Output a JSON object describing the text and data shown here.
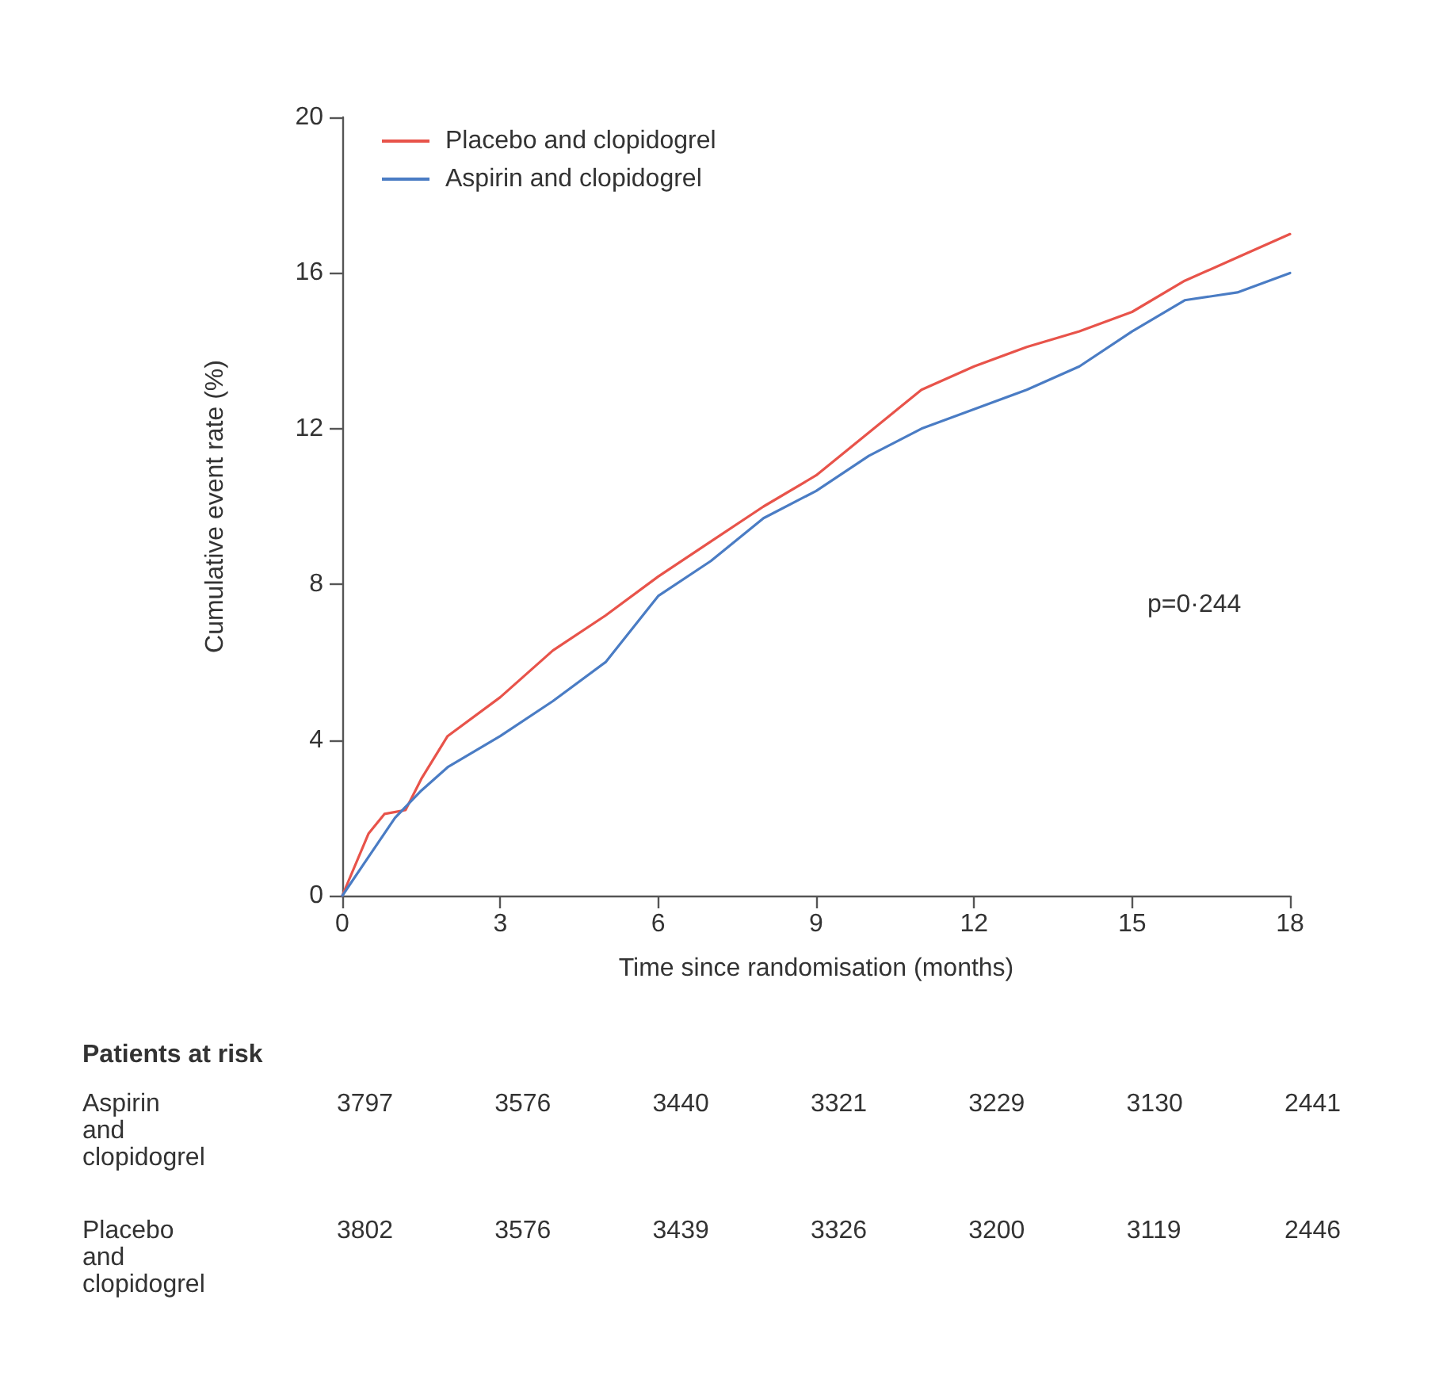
{
  "chart_data": {
    "type": "line",
    "xlabel": "Time since randomisation (months)",
    "ylabel": "Cumulative event rate (%)",
    "x": [
      0,
      0.5,
      0.8,
      1.2,
      1.5,
      2,
      3,
      4,
      5,
      6,
      7,
      8,
      9,
      10,
      11,
      12,
      13,
      14,
      15,
      16,
      17,
      18
    ],
    "series": [
      {
        "name": "Placebo and clopidogrel",
        "color": "#e8534a",
        "values": [
          0,
          1.6,
          2.1,
          2.2,
          3.0,
          4.1,
          5.1,
          6.3,
          7.2,
          8.2,
          9.1,
          10.0,
          10.8,
          11.9,
          13.0,
          13.6,
          14.1,
          14.5,
          15.0,
          15.8,
          16.4,
          17.0
        ]
      },
      {
        "name": "Aspirin and clopidogrel",
        "color": "#4a7cc4",
        "x": [
          0,
          0.5,
          1,
          1.5,
          2,
          3,
          4,
          5,
          6,
          7,
          8,
          9,
          10,
          11,
          12,
          13,
          14,
          15,
          16,
          17,
          18
        ],
        "values": [
          0,
          1.0,
          2.0,
          2.7,
          3.3,
          4.1,
          5.0,
          6.0,
          7.7,
          8.6,
          9.7,
          10.4,
          11.3,
          12.0,
          12.5,
          13.0,
          13.6,
          14.5,
          15.3,
          15.5,
          16.0
        ]
      }
    ],
    "xlim": [
      0,
      18
    ],
    "xticks": [
      0,
      3,
      6,
      9,
      12,
      15,
      18
    ],
    "ylim": [
      0,
      20
    ],
    "yticks": [
      0,
      4,
      8,
      12,
      16,
      20
    ],
    "grid": false,
    "legend": "top left",
    "marker": "none",
    "line_style": "solid",
    "annotations": [
      "p=0·244",
      "Patients at risk",
      "Aspirin\nand\nclopidogrel",
      "3797",
      "3576",
      "3440",
      "3321",
      "3229",
      "3130",
      "2441",
      "Placebo\nand\nclopidogrel",
      "3802",
      "3576",
      "3439",
      "3326",
      "3200",
      "3119",
      "2446"
    ]
  }
}
